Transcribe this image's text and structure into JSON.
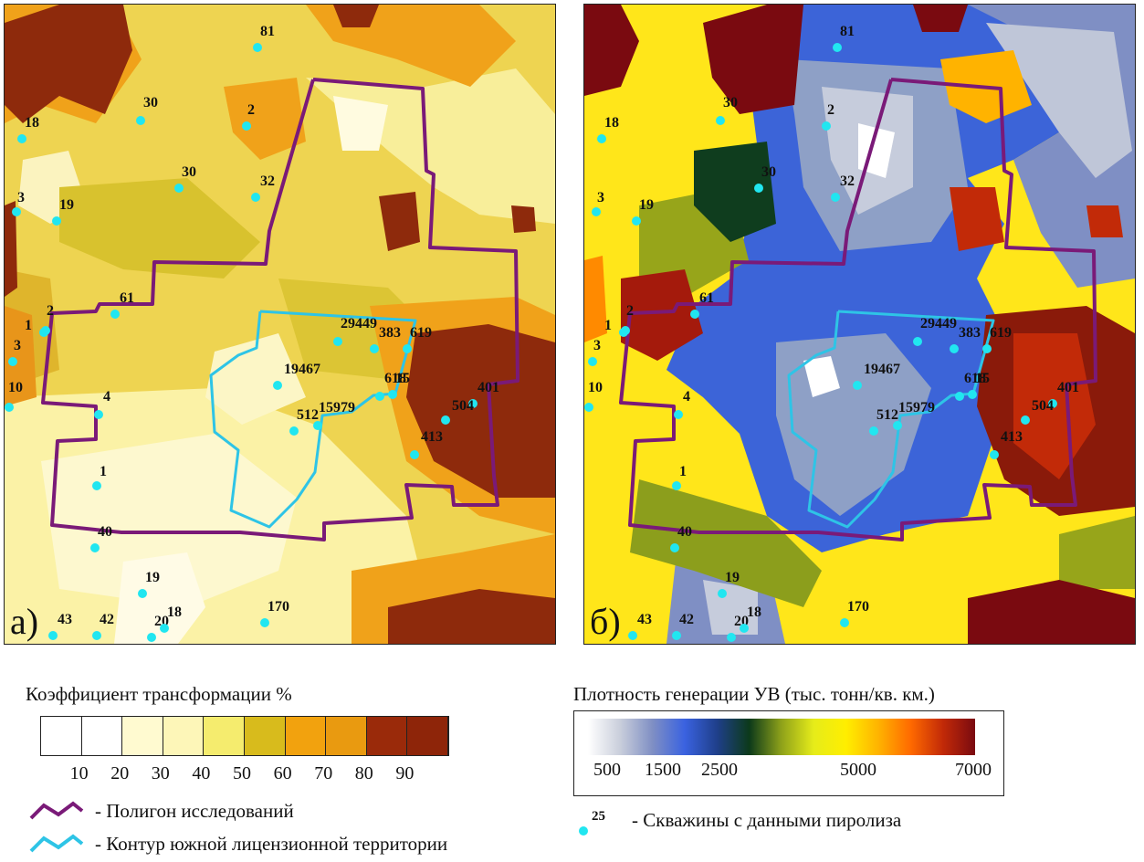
{
  "colors": {
    "polygon": "#7a1a78",
    "license_contour": "#2ec4e6",
    "well_dot": "#21e6f0"
  },
  "map_a": {
    "panel_label": "а)",
    "wells": [
      {
        "label": "81"
      },
      {
        "label": "30"
      },
      {
        "label": "18"
      },
      {
        "label": "2"
      },
      {
        "label": "30"
      },
      {
        "label": "32"
      },
      {
        "label": "3"
      },
      {
        "label": "19"
      },
      {
        "label": "61"
      },
      {
        "label": "2"
      },
      {
        "label": "1"
      },
      {
        "label": "3"
      },
      {
        "label": "10"
      },
      {
        "label": "29449"
      },
      {
        "label": "383"
      },
      {
        "label": "619"
      },
      {
        "label": "19467"
      },
      {
        "label": "618"
      },
      {
        "label": "15"
      },
      {
        "label": "4"
      },
      {
        "label": "512"
      },
      {
        "label": "15979"
      },
      {
        "label": "401"
      },
      {
        "label": "504"
      },
      {
        "label": "413"
      },
      {
        "label": "1"
      },
      {
        "label": "40"
      },
      {
        "label": "19"
      },
      {
        "label": "170"
      },
      {
        "label": "43"
      },
      {
        "label": "42"
      },
      {
        "label": "20"
      },
      {
        "label": "18"
      }
    ]
  },
  "map_b": {
    "panel_label": "б)",
    "wells": [
      {
        "label": "81"
      },
      {
        "label": "30"
      },
      {
        "label": "18"
      },
      {
        "label": "2"
      },
      {
        "label": "30"
      },
      {
        "label": "32"
      },
      {
        "label": "3"
      },
      {
        "label": "19"
      },
      {
        "label": "61"
      },
      {
        "label": "2"
      },
      {
        "label": "1"
      },
      {
        "label": "3"
      },
      {
        "label": "10"
      },
      {
        "label": "29449"
      },
      {
        "label": "383"
      },
      {
        "label": "619"
      },
      {
        "label": "19467"
      },
      {
        "label": "618"
      },
      {
        "label": "15"
      },
      {
        "label": "4"
      },
      {
        "label": "512"
      },
      {
        "label": "15979"
      },
      {
        "label": "401"
      },
      {
        "label": "504"
      },
      {
        "label": "413"
      },
      {
        "label": "1"
      },
      {
        "label": "40"
      },
      {
        "label": "19"
      },
      {
        "label": "170"
      },
      {
        "label": "43"
      },
      {
        "label": "42"
      },
      {
        "label": "20"
      },
      {
        "label": "18"
      }
    ]
  },
  "legend_transform": {
    "title": "Коэффициент трансформации %",
    "ticks": [
      "10",
      "20",
      "30",
      "40",
      "50",
      "60",
      "70",
      "80",
      "90"
    ],
    "colors": [
      "#ffffff",
      "#ffffff",
      "#fffad0",
      "#fdf6b8",
      "#f5ec6e",
      "#d8bb1c",
      "#f2a20e",
      "#e99a10",
      "#9a2a0a",
      "#8e2509"
    ]
  },
  "legend_density": {
    "title": "Плотность генерации УВ (тыс. тонн/кв. км.)",
    "ticks": [
      "500",
      "1500",
      "2500",
      "5000",
      "7000"
    ],
    "colors": [
      "#ffffff",
      "#c9cedb",
      "#7f8fc4",
      "#3a62e0",
      "#1f3f8a",
      "#0c3a1a",
      "#8fa21a",
      "#e6ec1a",
      "#ffee00",
      "#ffb300",
      "#ff6a00",
      "#c22a08",
      "#7a0a10"
    ]
  },
  "legend_symbols": {
    "polygon_label": "- Полигон исследований",
    "license_label": "- Контур южной лицензионной территории",
    "well_superscript": "25",
    "well_label": "- Скважины с данными пиролиза"
  }
}
